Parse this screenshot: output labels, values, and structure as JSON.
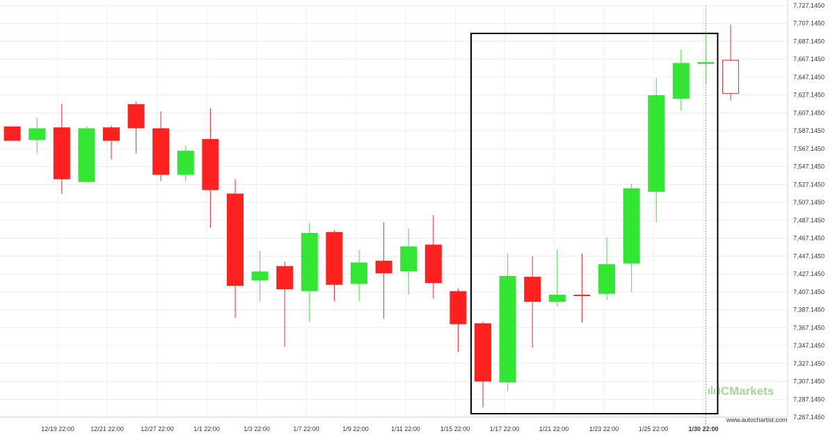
{
  "chart_data": {
    "type": "candlestick",
    "y_ticks": [
      "7,727.1450",
      "7,707.1450",
      "7,687.1450",
      "7,667.1450",
      "7,647.1450",
      "7,627.1450",
      "7,607.1450",
      "7,587.1450",
      "7,567.1450",
      "7,547.1450",
      "7,527.1450",
      "7,507.1450",
      "7,487.1450",
      "7,467.1450",
      "7,447.1450",
      "7,427.1450",
      "7,407.1450",
      "7,387.1450",
      "7,367.1450",
      "7,347.1450",
      "7,327.1450",
      "7,307.1450",
      "7,287.1450",
      "7,267.1450"
    ],
    "ylim": [
      7267.145,
      7727.145
    ],
    "x_ticks": [
      "12/19 22:00",
      "12/21 22:00",
      "12/27 22:00",
      "1/1 22:00",
      "1/3 22:00",
      "1/7 22:00",
      "1/9 22:00",
      "1/11 22:00",
      "1/15 22:00",
      "1/17 22:00",
      "1/21 22:00",
      "1/23 22:00",
      "1/25 22:00",
      "1/30 22:00"
    ],
    "x_ticks_bold": "1/30 22:00",
    "colors": {
      "up": "#33e633",
      "down": "#ff2020",
      "hollow_down": "#e0303a",
      "box": "#000000",
      "grid": "#ececec",
      "cursor": "#999999"
    },
    "candles": [
      {
        "open": 7592,
        "close": 7576,
        "high": 7592,
        "low": 7576
      },
      {
        "open": 7577,
        "close": 7590,
        "high": 7602,
        "low": 7562
      },
      {
        "open": 7591,
        "close": 7533,
        "high": 7617,
        "low": 7517
      },
      {
        "open": 7530,
        "close": 7590,
        "high": 7592,
        "low": 7530
      },
      {
        "open": 7591,
        "close": 7576,
        "high": 7593,
        "low": 7555
      },
      {
        "open": 7617,
        "close": 7590,
        "high": 7620,
        "low": 7562
      },
      {
        "open": 7590,
        "close": 7538,
        "high": 7609,
        "low": 7531
      },
      {
        "open": 7538,
        "close": 7565,
        "high": 7571,
        "low": 7531
      },
      {
        "open": 7578,
        "close": 7521,
        "high": 7612,
        "low": 7479
      },
      {
        "open": 7517,
        "close": 7414,
        "high": 7533,
        "low": 7378
      },
      {
        "open": 7420,
        "close": 7430,
        "high": 7453,
        "low": 7397
      },
      {
        "open": 7436,
        "close": 7410,
        "high": 7441,
        "low": 7346
      },
      {
        "open": 7408,
        "close": 7473,
        "high": 7484,
        "low": 7374
      },
      {
        "open": 7474,
        "close": 7415,
        "high": 7476,
        "low": 7397
      },
      {
        "open": 7416,
        "close": 7440,
        "high": 7454,
        "low": 7397
      },
      {
        "open": 7442,
        "close": 7428,
        "high": 7485,
        "low": 7377
      },
      {
        "open": 7430,
        "close": 7458,
        "high": 7478,
        "low": 7404
      },
      {
        "open": 7460,
        "close": 7417,
        "high": 7493,
        "low": 7400
      },
      {
        "open": 7408,
        "close": 7371,
        "high": 7411,
        "low": 7340
      },
      {
        "open": 7372,
        "close": 7307,
        "high": 7374,
        "low": 7278
      },
      {
        "open": 7306,
        "close": 7425,
        "high": 7450,
        "low": 7296
      },
      {
        "open": 7424,
        "close": 7396,
        "high": 7447,
        "low": 7345
      },
      {
        "open": 7396,
        "close": 7404,
        "high": 7455,
        "low": 7391
      },
      {
        "open": 7404,
        "close": 7403,
        "high": 7450,
        "low": 7373
      },
      {
        "open": 7405,
        "close": 7438,
        "high": 7468,
        "low": 7398
      },
      {
        "open": 7439,
        "close": 7523,
        "high": 7528,
        "low": 7407
      },
      {
        "open": 7519,
        "close": 7627,
        "high": 7646,
        "low": 7485
      },
      {
        "open": 7623,
        "close": 7663,
        "high": 7678,
        "low": 7610
      },
      {
        "open": 7662,
        "close": 7664,
        "high": 7695,
        "low": 7640
      },
      {
        "open": 7666,
        "close": 7629,
        "high": 7706,
        "low": 7621,
        "hollow": true
      }
    ],
    "pattern_box": {
      "from_candle": 19,
      "to_candle": 28,
      "high": 7696,
      "low": 7271
    },
    "cursor_candle": 28,
    "watermark": "ICMarkets",
    "source": "www.autochartist.com"
  }
}
